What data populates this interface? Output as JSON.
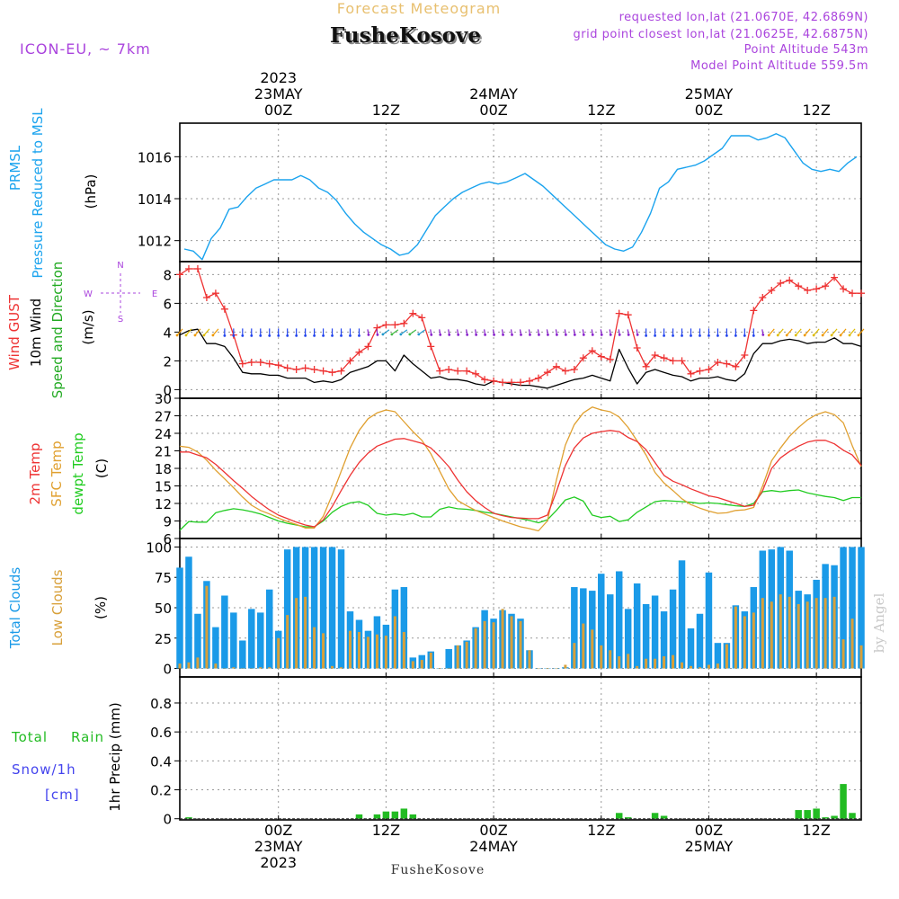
{
  "header": {
    "top_title": "Forecast Meteogram",
    "location": "FusheKosove",
    "model": "ICON-EU, ~ 7km",
    "requested": "requested lon,lat (21.0670E, 42.6869N)",
    "closest": "grid point closest lon,lat (21.0625E, 42.6875N)",
    "point_alt": "Point Altitude 543m",
    "model_alt": "Model Point Altitude 559.5m",
    "watermark": "by Angel",
    "footer_location": "FusheKosove"
  },
  "colors": {
    "pressure": "#1aa3ee",
    "gust": "#ee3333",
    "wind": "#000000",
    "direction_label": "#22aa22",
    "t2m": "#ee3333",
    "sfc": "#e0a030",
    "dewpt": "#22cc22",
    "total_clouds": "#1a9ae8",
    "low_clouds": "#d8a03a",
    "rain": "#22bb22",
    "snow": "#4444ee",
    "compass": "#aa44dd",
    "header_purple": "#aa44dd",
    "header_orange": "#e8c070"
  },
  "time_axis": {
    "top_labels": [
      {
        "time": 0,
        "lines": [
          "2023",
          "23MAY",
          "00Z"
        ]
      },
      {
        "time": 12,
        "lines": [
          "12Z"
        ]
      },
      {
        "time": 24,
        "lines": [
          "24MAY",
          "00Z"
        ]
      },
      {
        "time": 36,
        "lines": [
          "12Z"
        ]
      },
      {
        "time": 48,
        "lines": [
          "25MAY",
          "00Z"
        ]
      },
      {
        "time": 60,
        "lines": [
          "12Z"
        ]
      }
    ],
    "bottom_labels": [
      {
        "time": 0,
        "lines": [
          "00Z",
          "23MAY",
          "2023"
        ]
      },
      {
        "time": 12,
        "lines": [
          "12Z"
        ]
      },
      {
        "time": 24,
        "lines": [
          "00Z",
          "24MAY"
        ]
      },
      {
        "time": 36,
        "lines": [
          "12Z"
        ]
      },
      {
        "time": 48,
        "lines": [
          "00Z",
          "25MAY"
        ]
      },
      {
        "time": 60,
        "lines": [
          "12Z"
        ]
      }
    ],
    "range_hours": [
      -11,
      65
    ]
  },
  "chart_data": [
    {
      "type": "line",
      "id": "pressure",
      "title": "PRMSL Pressure Reduced to MSL",
      "ylabel": "(hPa)",
      "ylim": [
        1011,
        1017.6
      ],
      "ticks": [
        1012,
        1014,
        1016
      ],
      "x": [
        -10.5,
        -9.5,
        -8.5,
        -7.5,
        -6.5,
        -5.5,
        -4.5,
        -3.5,
        -2.5,
        -1.5,
        -0.5,
        0.5,
        1.5,
        2.5,
        3.5,
        4.5,
        5.5,
        6.5,
        7.5,
        8.5,
        9.5,
        10.5,
        11.5,
        12.5,
        13.5,
        14.5,
        15.5,
        16.5,
        17.5,
        18.5,
        19.5,
        20.5,
        21.5,
        22.5,
        23.5,
        24.5,
        25.5,
        26.5,
        27.5,
        28.5,
        29.5,
        30.5,
        31.5,
        32.5,
        33.5,
        34.5,
        35.5,
        36.5,
        37.5,
        38.5,
        39.5,
        40.5,
        41.5,
        42.5,
        43.5,
        44.5,
        45.5,
        46.5,
        47.5,
        48.5,
        49.5,
        50.5,
        51.5,
        52.5,
        53.5,
        54.5,
        55.5,
        56.5,
        57.5,
        58.5,
        59.5,
        60.5,
        61.5,
        62.5,
        63.5,
        64.5
      ],
      "values": [
        1011.6,
        1011.5,
        1011.1,
        1012.1,
        1012.6,
        1013.5,
        1013.6,
        1014.1,
        1014.5,
        1014.7,
        1014.9,
        1014.9,
        1014.9,
        1015.1,
        1014.9,
        1014.5,
        1014.3,
        1013.9,
        1013.3,
        1012.8,
        1012.4,
        1012.1,
        1011.8,
        1011.6,
        1011.3,
        1011.4,
        1011.8,
        1012.5,
        1013.2,
        1013.6,
        1014.0,
        1014.3,
        1014.5,
        1014.7,
        1014.8,
        1014.7,
        1014.8,
        1015.0,
        1015.2,
        1014.9,
        1014.6,
        1014.2,
        1013.8,
        1013.4,
        1013.0,
        1012.6,
        1012.2,
        1011.8,
        1011.6,
        1011.5,
        1011.7,
        1012.4,
        1013.3,
        1014.5,
        1014.8,
        1015.4,
        1015.5,
        1015.6,
        1015.8,
        1016.1,
        1016.4,
        1017.0,
        1017.0,
        1017.0,
        1016.8,
        1016.9,
        1017.1,
        1016.9,
        1016.3,
        1015.7,
        1015.4,
        1015.3,
        1015.4,
        1015.3,
        1015.7,
        1016.0
      ]
    },
    {
      "type": "line",
      "id": "wind",
      "title": "Wind GUST / 10m Wind / Speed and Direction",
      "ylabel": "(m/s)",
      "ylim": [
        -0.6,
        8.9
      ],
      "ticks": [
        0,
        2,
        4,
        6,
        8
      ],
      "x": [
        -11,
        -10,
        -9,
        -8,
        -7,
        -6,
        -5,
        -4,
        -3,
        -2,
        -1,
        0,
        1,
        2,
        3,
        4,
        5,
        6,
        7,
        8,
        9,
        10,
        11,
        12,
        13,
        14,
        15,
        16,
        17,
        18,
        19,
        20,
        21,
        22,
        23,
        24,
        25,
        26,
        27,
        28,
        29,
        30,
        31,
        32,
        33,
        34,
        35,
        36,
        37,
        38,
        39,
        40,
        41,
        42,
        43,
        44,
        45,
        46,
        47,
        48,
        49,
        50,
        51,
        52,
        53,
        54,
        55,
        56,
        57,
        58,
        59,
        60,
        61,
        62,
        63,
        64,
        65
      ],
      "gust": [
        8.0,
        8.4,
        8.4,
        6.4,
        6.7,
        5.6,
        3.8,
        1.8,
        1.9,
        1.9,
        1.8,
        1.7,
        1.5,
        1.4,
        1.5,
        1.4,
        1.3,
        1.2,
        1.3,
        2.0,
        2.6,
        3.0,
        4.3,
        4.5,
        4.5,
        4.6,
        5.3,
        5.0,
        3.0,
        1.3,
        1.4,
        1.3,
        1.3,
        1.1,
        0.7,
        0.6,
        0.5,
        0.5,
        0.5,
        0.6,
        0.8,
        1.2,
        1.6,
        1.3,
        1.4,
        2.2,
        2.7,
        2.3,
        2.1,
        5.3,
        5.2,
        2.9,
        1.6,
        2.4,
        2.2,
        2.0,
        2.0,
        1.1,
        1.3,
        1.4,
        1.9,
        1.8,
        1.6,
        2.4,
        5.5,
        6.4,
        6.9,
        7.4,
        7.6,
        7.2,
        6.9,
        7.0,
        7.2,
        7.8,
        7.0,
        6.7,
        6.7
      ],
      "wind": [
        3.8,
        4.1,
        4.2,
        3.2,
        3.2,
        3.0,
        2.2,
        1.2,
        1.1,
        1.1,
        1.0,
        1.0,
        0.8,
        0.8,
        0.8,
        0.5,
        0.6,
        0.5,
        0.7,
        1.2,
        1.4,
        1.6,
        2.0,
        2.0,
        1.3,
        2.4,
        1.8,
        1.3,
        0.8,
        0.9,
        0.7,
        0.7,
        0.6,
        0.4,
        0.3,
        0.6,
        0.5,
        0.4,
        0.3,
        0.3,
        0.2,
        0.1,
        0.3,
        0.5,
        0.7,
        0.8,
        1.0,
        0.8,
        0.6,
        2.8,
        1.5,
        0.4,
        1.2,
        1.4,
        1.2,
        1.0,
        0.9,
        0.6,
        0.8,
        0.8,
        0.9,
        0.7,
        0.6,
        1.1,
        2.5,
        3.2,
        3.2,
        3.4,
        3.5,
        3.4,
        3.2,
        3.3,
        3.3,
        3.6,
        3.2,
        3.2,
        3.0
      ]
    },
    {
      "type": "line",
      "id": "temperature",
      "title": "2m Temp / SFC Temp / dewpt Temp",
      "ylabel": "(C)",
      "ylim": [
        6,
        30
      ],
      "ticks": [
        6,
        9,
        12,
        15,
        18,
        21,
        24,
        27,
        30
      ],
      "x": [
        -11,
        -10,
        -9,
        -8,
        -7,
        -6,
        -5,
        -4,
        -3,
        -2,
        -1,
        0,
        1,
        2,
        3,
        4,
        5,
        6,
        7,
        8,
        9,
        10,
        11,
        12,
        13,
        14,
        15,
        16,
        17,
        18,
        19,
        20,
        21,
        22,
        23,
        24,
        25,
        26,
        27,
        28,
        29,
        30,
        31,
        32,
        33,
        34,
        35,
        36,
        37,
        38,
        39,
        40,
        41,
        42,
        43,
        44,
        45,
        46,
        47,
        48,
        49,
        50,
        51,
        52,
        53,
        54,
        55,
        56,
        57,
        58,
        59,
        60,
        61,
        62,
        63,
        64,
        65
      ],
      "t2m": [
        20.8,
        20.8,
        20.3,
        19.8,
        18.7,
        17.3,
        15.9,
        14.6,
        13.2,
        12.0,
        10.9,
        10.0,
        9.4,
        8.8,
        8.3,
        8.0,
        9.2,
        11.5,
        14.2,
        16.8,
        19.0,
        20.6,
        21.8,
        22.4,
        23.0,
        23.1,
        22.7,
        22.3,
        21.5,
        20.0,
        18.3,
        16.0,
        14.0,
        12.5,
        11.3,
        10.3,
        9.9,
        9.6,
        9.5,
        9.4,
        9.4,
        10.0,
        14.0,
        18.5,
        21.5,
        23.2,
        24.0,
        24.3,
        24.5,
        24.3,
        23.3,
        22.6,
        21.2,
        19.0,
        16.8,
        15.8,
        15.2,
        14.5,
        13.9,
        13.3,
        13.0,
        12.5,
        12.0,
        11.5,
        11.7,
        14.2,
        18.0,
        19.8,
        20.9,
        21.8,
        22.5,
        22.8,
        22.8,
        22.2,
        21.1,
        20.3,
        18.5
      ],
      "sfc": [
        21.8,
        21.6,
        20.8,
        19.4,
        17.7,
        16.2,
        14.7,
        13.1,
        11.7,
        10.8,
        10.2,
        9.5,
        8.9,
        8.4,
        7.8,
        7.8,
        9.8,
        13.5,
        17.5,
        21.5,
        24.5,
        26.5,
        27.5,
        28.0,
        27.7,
        26.0,
        24.3,
        22.8,
        20.5,
        17.5,
        14.5,
        12.5,
        11.6,
        10.8,
        10.2,
        9.6,
        9.0,
        8.5,
        8.0,
        7.7,
        7.3,
        9.0,
        16.0,
        22.0,
        25.5,
        27.5,
        28.5,
        28.0,
        27.7,
        26.8,
        25.0,
        22.7,
        20.3,
        17.3,
        15.5,
        14.2,
        12.8,
        11.8,
        11.2,
        10.7,
        10.3,
        10.4,
        10.8,
        10.9,
        11.3,
        15.0,
        19.3,
        21.5,
        23.5,
        25.0,
        26.3,
        27.2,
        27.7,
        27.2,
        25.8,
        21.9,
        18.3
      ],
      "dewpt": [
        7.4,
        8.9,
        8.8,
        8.8,
        10.4,
        10.8,
        11.1,
        10.9,
        10.6,
        10.2,
        9.6,
        9.0,
        8.6,
        8.3,
        8.0,
        8.0,
        9.0,
        10.5,
        11.5,
        12.1,
        12.3,
        11.7,
        10.3,
        10.0,
        10.2,
        10.0,
        10.3,
        9.7,
        9.7,
        11.0,
        11.4,
        11.1,
        11.0,
        10.8,
        10.5,
        10.3,
        10.0,
        9.7,
        9.4,
        9.1,
        8.7,
        9.2,
        10.8,
        12.6,
        13.1,
        12.4,
        10.0,
        9.6,
        9.8,
        8.9,
        9.2,
        10.5,
        11.4,
        12.3,
        12.5,
        12.4,
        12.3,
        12.2,
        12.0,
        12.1,
        12.0,
        11.8,
        11.6,
        11.5,
        12.0,
        14.0,
        14.2,
        14.0,
        14.2,
        14.3,
        13.8,
        13.5,
        13.2,
        13.0,
        12.5,
        13.0,
        13.0
      ]
    },
    {
      "type": "bar",
      "id": "clouds",
      "title": "Total Clouds / Low Clouds",
      "ylabel": "(%)",
      "ylim": [
        -7,
        107
      ],
      "ticks": [
        0,
        25,
        50,
        75,
        100
      ],
      "x": [
        -11,
        -10,
        -9,
        -8,
        -7,
        -6,
        -5,
        -4,
        -3,
        -2,
        -1,
        0,
        1,
        2,
        3,
        4,
        5,
        6,
        7,
        8,
        9,
        10,
        11,
        12,
        13,
        14,
        15,
        16,
        17,
        18,
        19,
        20,
        21,
        22,
        23,
        24,
        25,
        26,
        27,
        28,
        29,
        30,
        31,
        32,
        33,
        34,
        35,
        36,
        37,
        38,
        39,
        40,
        41,
        42,
        43,
        44,
        45,
        46,
        47,
        48,
        49,
        50,
        51,
        52,
        53,
        54,
        55,
        56,
        57,
        58,
        59,
        60,
        61,
        62,
        63,
        64,
        65
      ],
      "total": [
        83,
        92,
        45,
        72,
        34,
        60,
        46,
        23,
        49,
        46,
        65,
        31,
        98,
        100,
        100,
        100,
        100,
        100,
        98,
        47,
        40,
        31,
        43,
        36,
        65,
        67,
        9,
        11,
        14,
        0,
        16,
        19,
        23,
        34,
        48,
        41,
        48,
        45,
        41,
        15,
        0,
        0,
        0,
        1,
        67,
        66,
        64,
        78,
        61,
        80,
        49,
        70,
        53,
        60,
        47,
        65,
        89,
        33,
        45,
        79,
        21,
        21,
        52,
        47,
        67,
        97,
        98,
        100,
        97,
        64,
        61,
        73,
        86,
        85,
        100,
        100,
        100
      ],
      "low": [
        4,
        5,
        9,
        68,
        4,
        0,
        1,
        0,
        0,
        1,
        1,
        25,
        44,
        58,
        59,
        34,
        29,
        2,
        1,
        31,
        30,
        26,
        28,
        27,
        43,
        30,
        6,
        7,
        13,
        0,
        0,
        19,
        22,
        33,
        39,
        38,
        49,
        43,
        39,
        15,
        0,
        0,
        0,
        3,
        21,
        37,
        32,
        19,
        15,
        10,
        12,
        2,
        8,
        8,
        10,
        11,
        5,
        2,
        1,
        3,
        4,
        20,
        51,
        43,
        46,
        58,
        55,
        61,
        59,
        53,
        55,
        58,
        58,
        59,
        24,
        41,
        19
      ]
    },
    {
      "type": "bar",
      "id": "precip",
      "title": "Total Rain / Snow/1h [cm]",
      "ylabel": "1hr Precip (mm)",
      "ylim": [
        -0.008,
        0.98
      ],
      "ticks": [
        0,
        0.2,
        0.4,
        0.6,
        0.8
      ],
      "tick_labels": [
        "0",
        "0.2",
        "0.4",
        "0.6",
        "0.8"
      ],
      "x": [
        -10,
        9,
        11,
        12,
        13,
        14,
        15,
        38,
        39,
        42,
        43,
        58,
        59,
        60,
        61,
        62,
        63,
        64
      ],
      "values": [
        0.01,
        0.03,
        0.03,
        0.05,
        0.05,
        0.07,
        0.03,
        0.04,
        0.01,
        0.04,
        0.02,
        0.06,
        0.06,
        0.07,
        0.01,
        0.02,
        0.24,
        0.04
      ]
    }
  ],
  "labels": {
    "pressure_left": [
      "PRMSL",
      "Pressure Reduced to MSL"
    ],
    "wind_left": [
      "Wind GUST",
      "10m Wind",
      "Speed and Direction"
    ],
    "temp_left": [
      "2m Temp",
      "SFC Temp",
      "dewpt Temp"
    ],
    "cloud_left": [
      "Total Clouds",
      "Low Clouds"
    ],
    "precip_left": [
      "Total",
      "Rain",
      "Snow/1h",
      "[cm]"
    ],
    "compass": {
      "n": "N",
      "s": "S",
      "w": "W",
      "e": "E"
    }
  }
}
